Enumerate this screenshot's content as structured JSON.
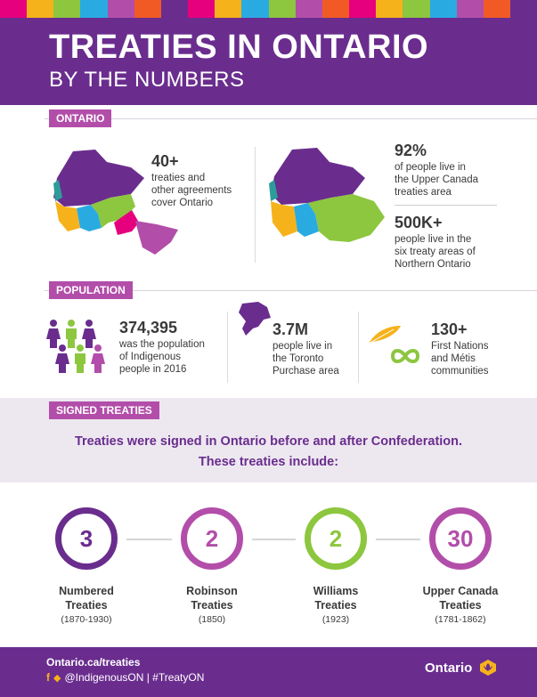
{
  "header": {
    "title": "TREATIES IN ONTARIO",
    "subtitle": "BY THE NUMBERS"
  },
  "ontario": {
    "label": "ONTARIO",
    "stat1_value": "40+",
    "stat1_text": [
      "treaties and",
      "other agreements",
      "cover Ontario"
    ],
    "stat2_value": "92%",
    "stat2_text": [
      "of people live in",
      "the Upper Canada",
      "treaties area"
    ],
    "stat3_value": "500K+",
    "stat3_text": [
      "people live in the",
      "six treaty areas of",
      "Northern Ontario"
    ]
  },
  "population": {
    "label": "POPULATION",
    "stat1_value": "374,395",
    "stat1_text": [
      "was the population",
      "of Indigenous",
      "people in 2016"
    ],
    "stat2_value": "3.7M",
    "stat2_text": [
      "people live in",
      "the Toronto",
      "Purchase area"
    ],
    "stat3_value": "130+",
    "stat3_text": [
      "First Nations",
      "and Métis",
      "communities"
    ]
  },
  "signed": {
    "label": "SIGNED TREATIES",
    "intro_line1": "Treaties were signed in Ontario before and after Confederation.",
    "intro_line2": "These treaties include:",
    "treaties": [
      {
        "number": "3",
        "name1": "Numbered",
        "name2": "Treaties",
        "years": "(1870-1930)",
        "color": "#6a2d8e"
      },
      {
        "number": "2",
        "name1": "Robinson",
        "name2": "Treaties",
        "years": "(1850)",
        "color": "#b24ea9"
      },
      {
        "number": "2",
        "name1": "Williams",
        "name2": "Treaties",
        "years": "(1923)",
        "color": "#8dc63f"
      },
      {
        "number": "30",
        "name1": "Upper Canada",
        "name2": "Treaties",
        "years": "(1781-1862)",
        "color": "#b24ea9"
      }
    ]
  },
  "footer": {
    "url": "Ontario.ca/treaties",
    "social": "@IndigenousON  |  #TreatyON",
    "brand": "Ontario"
  },
  "colors": {
    "purple": "#6a2d8e",
    "magenta": "#b24ea9",
    "green": "#8dc63f",
    "yellow": "#f6b21b",
    "blue": "#29abe2",
    "teal": "#2e9c9a",
    "pink": "#e6007e"
  }
}
